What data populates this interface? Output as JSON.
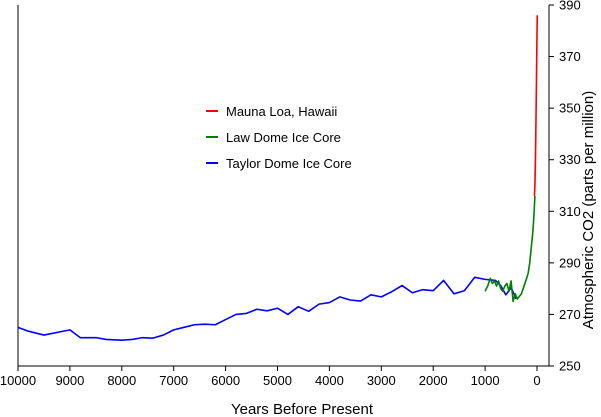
{
  "chart_data": {
    "type": "line",
    "xlabel": "Years Before Present",
    "ylabel": "Atmospheric CO2 (parts per million)",
    "xlim": [
      10000,
      -200
    ],
    "ylim": [
      250,
      390
    ],
    "x_ticks": [
      10000,
      9000,
      8000,
      7000,
      6000,
      5000,
      4000,
      3000,
      2000,
      1000,
      0
    ],
    "y_ticks": [
      250,
      270,
      290,
      310,
      330,
      350,
      370,
      390
    ],
    "grid": false,
    "legend_position": "upper-middle",
    "series": [
      {
        "name": "Mauna Loa, Hawaii",
        "color": "#ff0000",
        "points": [
          [
            50,
            316
          ],
          [
            45,
            318
          ],
          [
            40,
            320
          ],
          [
            35,
            325
          ],
          [
            30,
            330
          ],
          [
            25,
            337
          ],
          [
            20,
            345
          ],
          [
            15,
            353
          ],
          [
            10,
            361
          ],
          [
            5,
            370
          ],
          [
            0,
            379
          ],
          [
            -5,
            386
          ]
        ]
      },
      {
        "name": "Law Dome Ice Core",
        "color": "#008000",
        "points": [
          [
            1000,
            279
          ],
          [
            950,
            281
          ],
          [
            900,
            284
          ],
          [
            860,
            282
          ],
          [
            820,
            283
          ],
          [
            780,
            281
          ],
          [
            740,
            283
          ],
          [
            700,
            280
          ],
          [
            660,
            279
          ],
          [
            620,
            281
          ],
          [
            580,
            282
          ],
          [
            540,
            279
          ],
          [
            500,
            283
          ],
          [
            460,
            275
          ],
          [
            420,
            278
          ],
          [
            380,
            276
          ],
          [
            340,
            277
          ],
          [
            300,
            278
          ],
          [
            250,
            281
          ],
          [
            200,
            284
          ],
          [
            170,
            286
          ],
          [
            140,
            290
          ],
          [
            120,
            294
          ],
          [
            100,
            298
          ],
          [
            80,
            302
          ],
          [
            60,
            308
          ],
          [
            50,
            312
          ],
          [
            40,
            316
          ]
        ]
      },
      {
        "name": "Taylor Dome Ice Core",
        "color": "#0000ff",
        "points": [
          [
            10000,
            265
          ],
          [
            9800,
            263.5
          ],
          [
            9500,
            262
          ],
          [
            9000,
            264
          ],
          [
            8900,
            262.5
          ],
          [
            8800,
            261
          ],
          [
            8500,
            261
          ],
          [
            8300,
            260.3
          ],
          [
            8000,
            260
          ],
          [
            7800,
            260.3
          ],
          [
            7600,
            261
          ],
          [
            7400,
            260.8
          ],
          [
            7200,
            262
          ],
          [
            7000,
            264
          ],
          [
            6800,
            265
          ],
          [
            6600,
            266
          ],
          [
            6400,
            266.2
          ],
          [
            6200,
            266
          ],
          [
            6000,
            268
          ],
          [
            5800,
            270
          ],
          [
            5600,
            270.4
          ],
          [
            5400,
            272
          ],
          [
            5200,
            271.4
          ],
          [
            5000,
            272.4
          ],
          [
            4800,
            270
          ],
          [
            4600,
            273
          ],
          [
            4400,
            271.2
          ],
          [
            4200,
            274
          ],
          [
            4000,
            274.6
          ],
          [
            3800,
            276.8
          ],
          [
            3600,
            275.6
          ],
          [
            3400,
            275.2
          ],
          [
            3200,
            277.6
          ],
          [
            3000,
            276.8
          ],
          [
            2800,
            278.8
          ],
          [
            2600,
            281.2
          ],
          [
            2400,
            278.4
          ],
          [
            2200,
            279.6
          ],
          [
            2000,
            279.2
          ],
          [
            1800,
            283.2
          ],
          [
            1600,
            278
          ],
          [
            1400,
            279.2
          ],
          [
            1200,
            284.4
          ],
          [
            1000,
            283.6
          ],
          [
            800,
            283.2
          ],
          [
            700,
            281.2
          ],
          [
            600,
            277.6
          ],
          [
            500,
            280.4
          ],
          [
            400,
            276
          ]
        ]
      }
    ]
  }
}
